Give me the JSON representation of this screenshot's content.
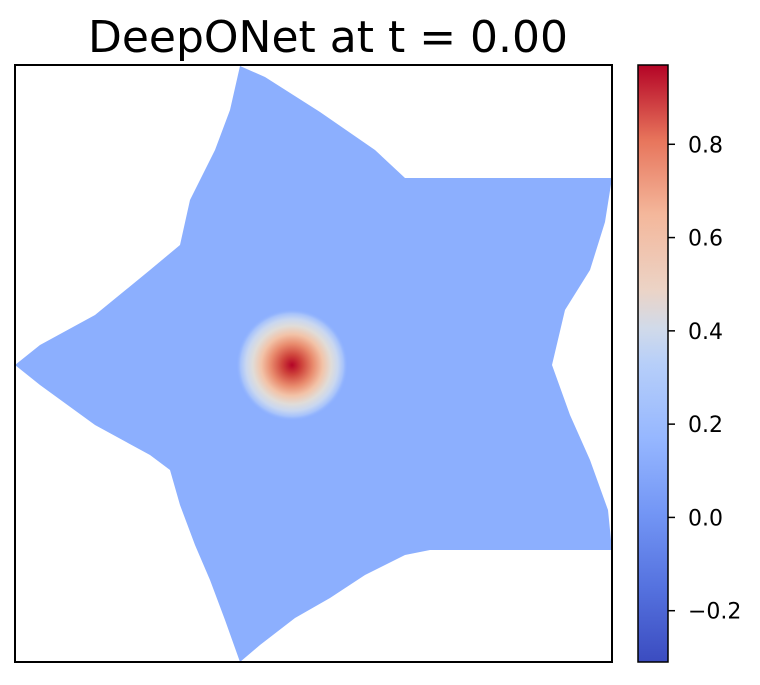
{
  "chart_data": {
    "type": "heatmap",
    "title": "DeepONet at t = 0.00",
    "xlabel": "",
    "ylabel": "",
    "colormap": "coolwarm",
    "colorbar": {
      "vmin": -0.31,
      "vmax": 0.97,
      "ticks": [
        -0.2,
        0.0,
        0.2,
        0.4,
        0.6,
        0.8
      ],
      "tick_labels": [
        "−0.2",
        "0.0",
        "0.2",
        "0.4",
        "0.6",
        "0.8"
      ]
    },
    "domain": {
      "shape": "five-pointed star",
      "background_value": 0.0
    },
    "peak": {
      "value": 0.97,
      "x": 0.47,
      "y": 0.5,
      "width": 0.05
    },
    "grid": false,
    "axis_ticks": false
  }
}
